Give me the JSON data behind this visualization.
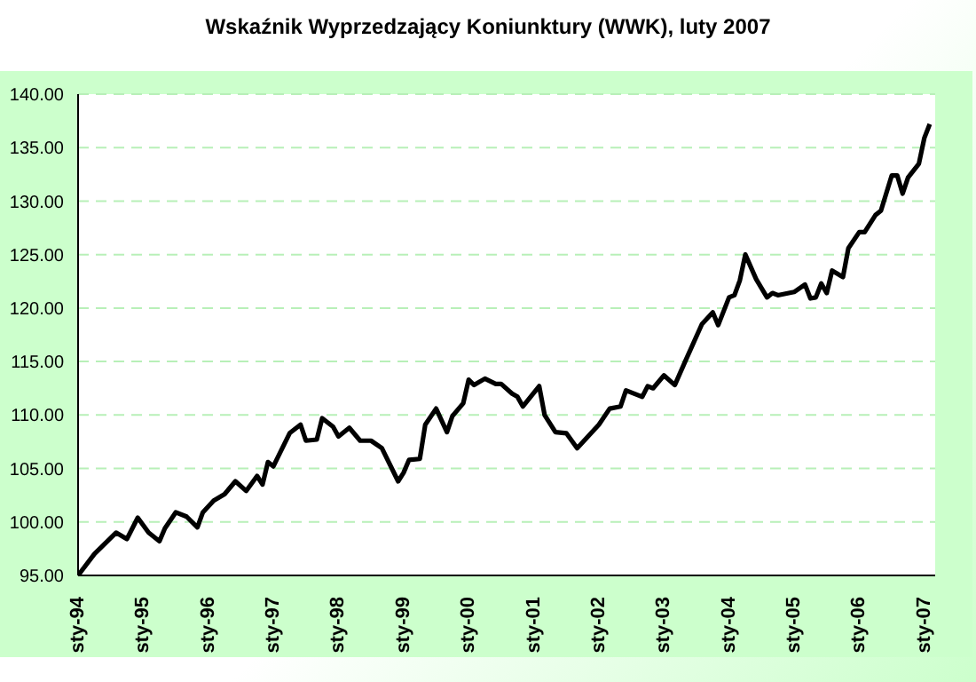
{
  "chart_data": {
    "type": "line",
    "title": "Wskaźnik Wyprzedzający Koniunktury (WWK), luty 2007",
    "x": [
      "1994-01",
      "1994-04",
      "1994-08",
      "1994-10",
      "1994-12",
      "1995-02",
      "1995-04",
      "1995-05",
      "1995-07",
      "1995-09",
      "1995-11",
      "1995-12",
      "1996-02",
      "1996-04",
      "1996-06",
      "1996-08",
      "1996-10",
      "1996-11",
      "1996-12",
      "1997-01",
      "1997-04",
      "1997-06",
      "1997-07",
      "1997-09",
      "1997-10",
      "1997-12",
      "1998-01",
      "1998-03",
      "1998-05",
      "1998-07",
      "1998-09",
      "1998-12",
      "1999-01",
      "1999-02",
      "1999-04",
      "1999-05",
      "1999-07",
      "1999-09",
      "1999-10",
      "1999-12",
      "2000-01",
      "2000-02",
      "2000-04",
      "2000-06",
      "2000-07",
      "2000-09",
      "2000-10",
      "2000-11",
      "2001-02",
      "2001-03",
      "2001-05",
      "2001-07",
      "2001-09",
      "2001-11",
      "2002-01",
      "2002-03",
      "2002-05",
      "2002-06",
      "2002-09",
      "2002-10",
      "2002-11",
      "2003-01",
      "2003-03",
      "2003-05",
      "2003-08",
      "2003-10",
      "2003-11",
      "2004-01",
      "2004-02",
      "2004-03",
      "2004-04",
      "2004-06",
      "2004-08",
      "2004-09",
      "2004-10",
      "2005-01",
      "2005-03",
      "2005-04",
      "2005-05",
      "2005-06",
      "2005-07",
      "2005-08",
      "2005-10",
      "2005-11",
      "2006-01",
      "2006-02",
      "2006-04",
      "2006-05",
      "2006-07",
      "2006-08",
      "2006-09",
      "2006-10",
      "2006-12",
      "2007-01",
      "2007-02"
    ],
    "series": [
      {
        "color": "#000000",
        "values": [
          95.0,
          97.0,
          99.0,
          98.4,
          100.4,
          99.0,
          98.2,
          99.4,
          100.9,
          100.5,
          99.5,
          100.9,
          102.0,
          102.6,
          103.8,
          102.9,
          104.3,
          103.5,
          105.6,
          105.2,
          108.3,
          109.1,
          107.6,
          107.7,
          109.7,
          108.9,
          108.0,
          108.8,
          107.6,
          107.6,
          106.9,
          103.8,
          104.6,
          105.8,
          105.9,
          109.1,
          110.6,
          108.4,
          109.9,
          111.1,
          113.3,
          112.8,
          113.4,
          112.9,
          112.9,
          112.0,
          111.7,
          110.8,
          112.7,
          110.0,
          108.4,
          108.3,
          106.9,
          108.0,
          109.1,
          110.6,
          110.8,
          112.3,
          111.7,
          112.7,
          112.5,
          113.7,
          112.8,
          115.1,
          118.5,
          119.6,
          118.4,
          121.0,
          121.2,
          122.6,
          125.0,
          122.7,
          121.0,
          121.4,
          121.2,
          121.5,
          122.2,
          120.9,
          121.0,
          122.3,
          121.4,
          123.5,
          122.9,
          125.6,
          127.1,
          127.1,
          128.7,
          129.1,
          132.4,
          132.4,
          130.7,
          132.2,
          133.5,
          135.9,
          137.2
        ]
      }
    ],
    "xlim": [
      "1994-01",
      "2007-03"
    ],
    "xticks": [
      {
        "value": "1994-01",
        "label": "sty-94"
      },
      {
        "value": "1995-01",
        "label": "sty-95"
      },
      {
        "value": "1996-01",
        "label": "sty-96"
      },
      {
        "value": "1997-01",
        "label": "sty-97"
      },
      {
        "value": "1998-01",
        "label": "sty-98"
      },
      {
        "value": "1999-01",
        "label": "sty-99"
      },
      {
        "value": "2000-01",
        "label": "sty-00"
      },
      {
        "value": "2001-01",
        "label": "sty-01"
      },
      {
        "value": "2002-01",
        "label": "sty-02"
      },
      {
        "value": "2003-01",
        "label": "sty-03"
      },
      {
        "value": "2004-01",
        "label": "sty-04"
      },
      {
        "value": "2005-01",
        "label": "sty-05"
      },
      {
        "value": "2006-01",
        "label": "sty-06"
      },
      {
        "value": "2007-01",
        "label": "sty-07"
      }
    ],
    "ylim": [
      95,
      140
    ],
    "yticks": [
      {
        "value": 95,
        "label": "95.00"
      },
      {
        "value": 100,
        "label": "100.00"
      },
      {
        "value": 105,
        "label": "105.00"
      },
      {
        "value": 110,
        "label": "110.00"
      },
      {
        "value": 115,
        "label": "115.00"
      },
      {
        "value": 120,
        "label": "120.00"
      },
      {
        "value": 125,
        "label": "125.00"
      },
      {
        "value": 130,
        "label": "130.00"
      },
      {
        "value": 135,
        "label": "135.00"
      },
      {
        "value": 140,
        "label": "140.00"
      }
    ],
    "grid": "y",
    "legend": false,
    "marker": "none",
    "line_style": "solid"
  }
}
